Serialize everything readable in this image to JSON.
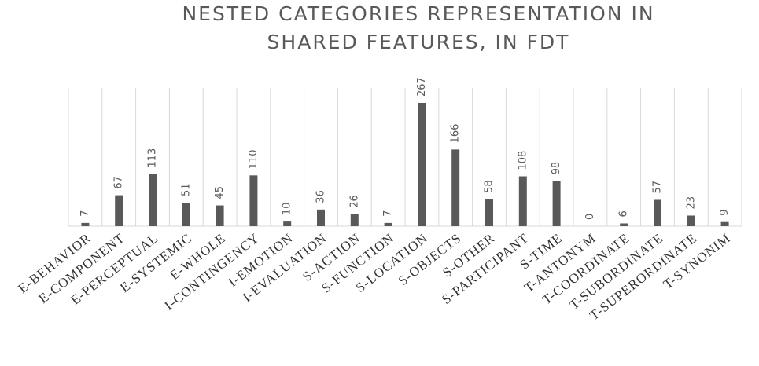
{
  "chart_data": {
    "type": "bar",
    "title": "NESTED CATEGORIES REPRESENTATION IN SHARED FEATURES, IN FDT",
    "categories": [
      "E-BEHAVIOR",
      "E-COMPONENT",
      "E-PERCEPTUAL",
      "E-SYSTEMIC",
      "E-WHOLE",
      "I-CONTINGENCY",
      "I-EMOTION",
      "I-EVALUATION",
      "S-ACTION",
      "S-FUNCTION",
      "S-LOCATION",
      "S-OBJECTS",
      "S-OTHER",
      "S-PARTICIPANT",
      "S-TIME",
      "T-ANTONYM",
      "T-COORDINATE",
      "T-SUBORDINATE",
      "T-SUPERORDINATE",
      "T-SYNONIM"
    ],
    "values": [
      7,
      67,
      113,
      51,
      45,
      110,
      10,
      36,
      26,
      7,
      267,
      166,
      58,
      108,
      98,
      0,
      6,
      57,
      23,
      9
    ],
    "color": "#595959"
  }
}
